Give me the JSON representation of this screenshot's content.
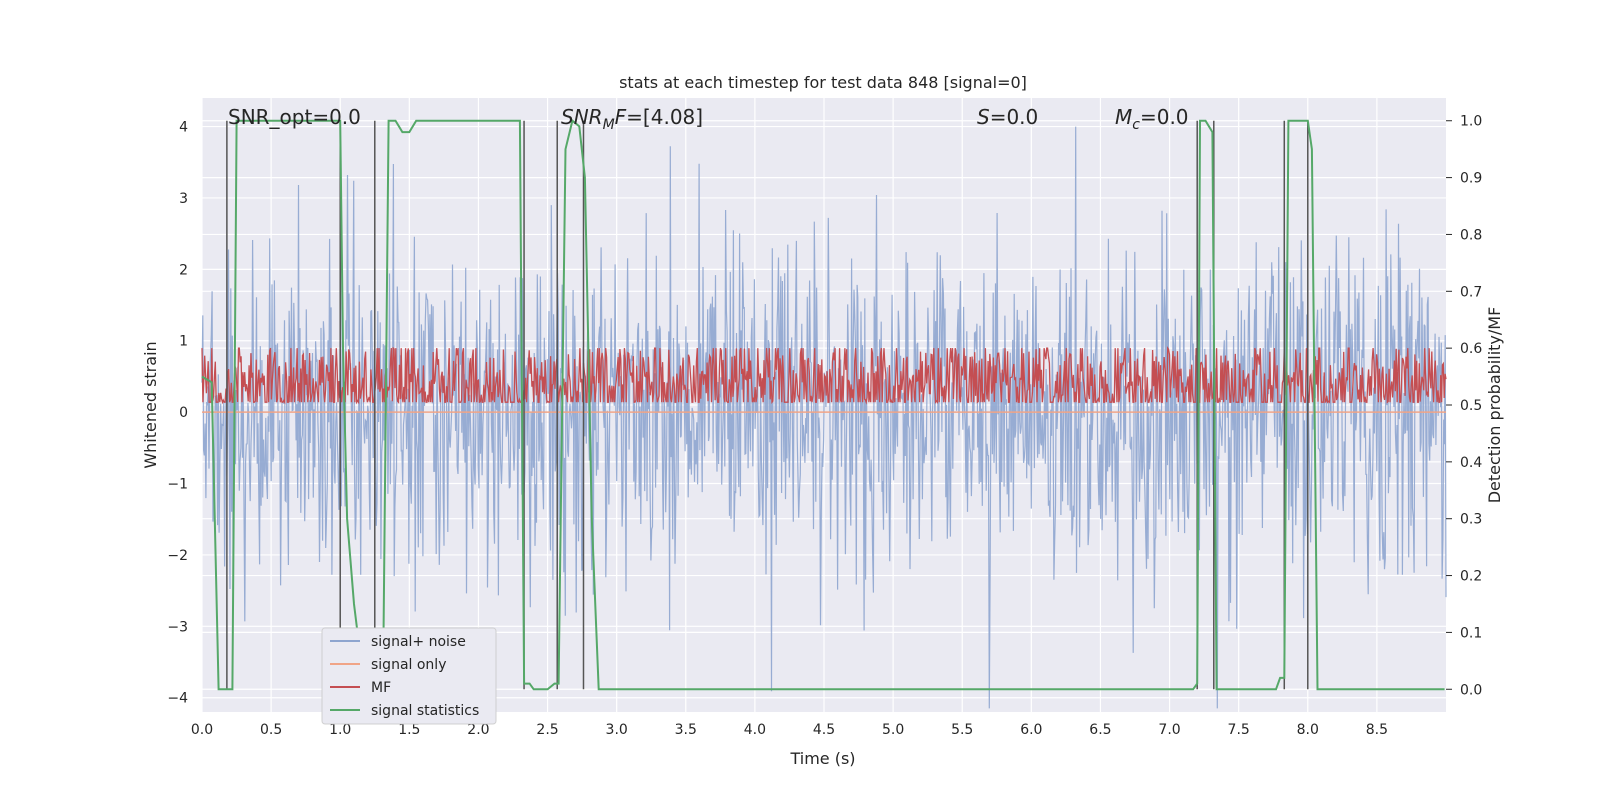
{
  "chart_data": {
    "type": "line",
    "title": "stats at each timestep for test data 848 [signal=0]",
    "xlabel": "Time (s)",
    "ylabel_left": "Whitened strain",
    "ylabel_right": "Detection probability/MF",
    "xlim": [
      0.0,
      9.0
    ],
    "ylim_left": [
      -4.2,
      4.4
    ],
    "ylim_right": [
      -0.04,
      1.04
    ],
    "x_ticks": [
      "0.0",
      "0.5",
      "1.0",
      "1.5",
      "2.0",
      "2.5",
      "3.0",
      "3.5",
      "4.0",
      "4.5",
      "5.0",
      "5.5",
      "6.0",
      "6.5",
      "7.0",
      "7.5",
      "8.0",
      "8.5"
    ],
    "y_ticks_left": [
      "4",
      "3",
      "2",
      "1",
      "0",
      "−1",
      "−2",
      "−3",
      "−4"
    ],
    "y_ticks_right": [
      "1.0",
      "0.9",
      "0.8",
      "0.7",
      "0.6",
      "0.5",
      "0.4",
      "0.3",
      "0.2",
      "0.1",
      "0.0"
    ],
    "grid": true,
    "legend_position": "lower-left",
    "annotations": {
      "snr_opt": "SNR_opt=0.0",
      "snr_mf_sym": "SNR",
      "snr_mf_sub": "M",
      "snr_mf_tail": "F",
      "snr_mf_val": "=[4.08]",
      "s_sym": "S",
      "s_val": "=0.0",
      "mc_sym": "M",
      "mc_sub": "c",
      "mc_val": "=0.0"
    },
    "series": [
      {
        "name": "signal+ noise",
        "color": "#8ea5cf",
        "axis": "left",
        "style": "noise",
        "mean": 0.0,
        "std": 1.0
      },
      {
        "name": "signal only",
        "color": "#f0a487",
        "axis": "left",
        "style": "constant",
        "value": 0.0
      },
      {
        "name": "MF",
        "color": "#c44e52",
        "axis": "right",
        "style": "noise",
        "mean": 0.535,
        "std": 0.035
      },
      {
        "name": "signal statistics",
        "color": "#55a868",
        "axis": "right",
        "x": [
          0.0,
          0.07,
          0.12,
          0.17,
          0.22,
          0.25,
          0.27,
          0.32,
          0.4,
          0.6,
          0.8,
          1.0,
          1.02,
          1.05,
          1.1,
          1.15,
          1.22,
          1.25,
          1.28,
          1.31,
          1.35,
          1.4,
          1.45,
          1.5,
          1.55,
          1.6,
          1.7,
          1.85,
          1.95,
          2.0,
          2.1,
          2.2,
          2.3,
          2.33,
          2.37,
          2.4,
          2.45,
          2.5,
          2.55,
          2.58,
          2.63,
          2.68,
          2.73,
          2.77,
          2.82,
          2.87,
          2.9,
          3.0,
          4.0,
          5.0,
          6.0,
          7.0,
          7.17,
          7.2,
          7.22,
          7.26,
          7.31,
          7.34,
          7.37,
          7.5,
          7.77,
          7.8,
          7.83,
          7.86,
          7.9,
          7.95,
          8.0,
          8.03,
          8.07,
          8.1,
          8.5,
          8.99
        ],
        "y": [
          0.55,
          0.54,
          0.0,
          0.0,
          0.0,
          1.0,
          1.0,
          1.0,
          1.0,
          1.0,
          1.0,
          1.0,
          0.6,
          0.3,
          0.15,
          0.05,
          0.02,
          0.02,
          0.02,
          0.02,
          1.0,
          1.0,
          0.98,
          0.98,
          1.0,
          1.0,
          1.0,
          1.0,
          1.0,
          1.0,
          1.0,
          1.0,
          1.0,
          0.01,
          0.01,
          0.0,
          0.0,
          0.0,
          0.01,
          0.01,
          0.95,
          1.0,
          0.99,
          0.9,
          0.3,
          0.0,
          0.0,
          0.0,
          0.0,
          0.0,
          0.0,
          0.0,
          0.0,
          0.01,
          1.0,
          1.0,
          0.98,
          0.0,
          0.0,
          0.0,
          0.0,
          0.02,
          0.02,
          1.0,
          1.0,
          1.0,
          1.0,
          0.95,
          0.0,
          0.0,
          0.0,
          0.0
        ]
      }
    ],
    "vertical_markers_x": [
      0.18,
      1.0,
      1.25,
      2.33,
      2.57,
      2.76,
      7.2,
      7.32,
      7.83,
      8.0
    ]
  }
}
